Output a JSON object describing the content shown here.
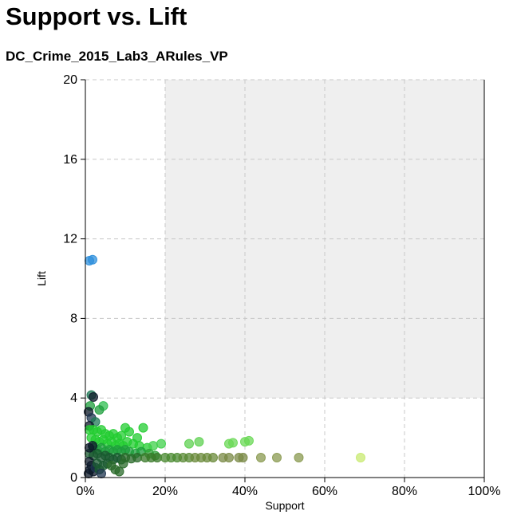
{
  "title": "Support vs. Lift",
  "subtitle": "DC_Crime_2015_Lab3_ARules_VP",
  "colors": {
    "background": "#ffffff",
    "shade_region": "#efefef",
    "grid": "#c8c8c8",
    "axis": "#000000"
  },
  "chart_data": {
    "type": "scatter",
    "xlabel": "Support",
    "ylabel": "Lift",
    "xlim": [
      0,
      1
    ],
    "ylim": [
      0,
      20
    ],
    "x_ticks": [
      "0%",
      "20%",
      "40%",
      "60%",
      "80%",
      "100%"
    ],
    "y_ticks": [
      "0",
      "4",
      "8",
      "12",
      "16",
      "20"
    ],
    "grid": true,
    "shaded_region": {
      "x_min": 0.2,
      "x_max": 1.0,
      "y_min": 4,
      "y_max": 20
    },
    "points": [
      {
        "x": 0.01,
        "y": 10.9,
        "c": "#2d8fdc"
      },
      {
        "x": 0.018,
        "y": 10.95,
        "c": "#2d8fdc"
      },
      {
        "x": 0.015,
        "y": 4.15,
        "c": "#1f7a55"
      },
      {
        "x": 0.02,
        "y": 4.05,
        "c": "#0d1a2a"
      },
      {
        "x": 0.012,
        "y": 3.6,
        "c": "#1e9e3c"
      },
      {
        "x": 0.045,
        "y": 3.6,
        "c": "#2fbf50"
      },
      {
        "x": 0.035,
        "y": 3.4,
        "c": "#1e9e3c"
      },
      {
        "x": 0.008,
        "y": 3.3,
        "c": "#0d1a2a"
      },
      {
        "x": 0.015,
        "y": 3.0,
        "c": "#1f3550"
      },
      {
        "x": 0.025,
        "y": 2.8,
        "c": "#1f7a55"
      },
      {
        "x": 0.01,
        "y": 2.6,
        "c": "#0d1a2a"
      },
      {
        "x": 0.01,
        "y": 2.4,
        "c": "#22cc30"
      },
      {
        "x": 0.02,
        "y": 2.4,
        "c": "#22cc30"
      },
      {
        "x": 0.03,
        "y": 2.3,
        "c": "#22cc30"
      },
      {
        "x": 0.04,
        "y": 2.4,
        "c": "#22cc30"
      },
      {
        "x": 0.05,
        "y": 2.2,
        "c": "#22cc30"
      },
      {
        "x": 0.06,
        "y": 2.1,
        "c": "#22cc30"
      },
      {
        "x": 0.07,
        "y": 2.2,
        "c": "#22cc30"
      },
      {
        "x": 0.08,
        "y": 2.0,
        "c": "#22cc30"
      },
      {
        "x": 0.09,
        "y": 2.1,
        "c": "#22cc30"
      },
      {
        "x": 0.1,
        "y": 2.5,
        "c": "#22cc30"
      },
      {
        "x": 0.11,
        "y": 2.3,
        "c": "#22cc30"
      },
      {
        "x": 0.13,
        "y": 2.0,
        "c": "#22cc30"
      },
      {
        "x": 0.145,
        "y": 2.5,
        "c": "#22cc30"
      },
      {
        "x": 0.015,
        "y": 2.0,
        "c": "#22cc30"
      },
      {
        "x": 0.025,
        "y": 1.9,
        "c": "#22cc30"
      },
      {
        "x": 0.035,
        "y": 1.8,
        "c": "#22cc30"
      },
      {
        "x": 0.045,
        "y": 1.9,
        "c": "#22cc30"
      },
      {
        "x": 0.055,
        "y": 1.7,
        "c": "#22cc30"
      },
      {
        "x": 0.065,
        "y": 1.8,
        "c": "#22cc30"
      },
      {
        "x": 0.075,
        "y": 1.6,
        "c": "#22cc30"
      },
      {
        "x": 0.085,
        "y": 1.7,
        "c": "#22cc30"
      },
      {
        "x": 0.095,
        "y": 1.6,
        "c": "#22cc30"
      },
      {
        "x": 0.105,
        "y": 1.8,
        "c": "#22cc30"
      },
      {
        "x": 0.12,
        "y": 1.7,
        "c": "#22cc30"
      },
      {
        "x": 0.135,
        "y": 1.6,
        "c": "#22cc30"
      },
      {
        "x": 0.155,
        "y": 1.5,
        "c": "#22cc30"
      },
      {
        "x": 0.17,
        "y": 1.6,
        "c": "#3fd04a"
      },
      {
        "x": 0.19,
        "y": 1.7,
        "c": "#3fd04a"
      },
      {
        "x": 0.26,
        "y": 1.7,
        "c": "#5dd050"
      },
      {
        "x": 0.285,
        "y": 1.8,
        "c": "#5dd050"
      },
      {
        "x": 0.36,
        "y": 1.7,
        "c": "#6ad855"
      },
      {
        "x": 0.37,
        "y": 1.75,
        "c": "#6ad855"
      },
      {
        "x": 0.4,
        "y": 1.8,
        "c": "#6ad855"
      },
      {
        "x": 0.41,
        "y": 1.85,
        "c": "#6ad855"
      },
      {
        "x": 0.02,
        "y": 1.5,
        "c": "#1e9e3c"
      },
      {
        "x": 0.03,
        "y": 1.4,
        "c": "#1e9e3c"
      },
      {
        "x": 0.04,
        "y": 1.5,
        "c": "#1e9e3c"
      },
      {
        "x": 0.05,
        "y": 1.3,
        "c": "#1e9e3c"
      },
      {
        "x": 0.06,
        "y": 1.4,
        "c": "#1e9e3c"
      },
      {
        "x": 0.07,
        "y": 1.3,
        "c": "#1e9e3c"
      },
      {
        "x": 0.08,
        "y": 1.4,
        "c": "#1e9e3c"
      },
      {
        "x": 0.09,
        "y": 1.3,
        "c": "#1e9e3c"
      },
      {
        "x": 0.1,
        "y": 1.4,
        "c": "#1e9e3c"
      },
      {
        "x": 0.11,
        "y": 1.3,
        "c": "#1e9e3c"
      },
      {
        "x": 0.125,
        "y": 1.2,
        "c": "#1e9e3c"
      },
      {
        "x": 0.14,
        "y": 1.3,
        "c": "#1e9e3c"
      },
      {
        "x": 0.16,
        "y": 1.2,
        "c": "#2fa03a"
      },
      {
        "x": 0.175,
        "y": 1.1,
        "c": "#2fa03a"
      },
      {
        "x": 0.01,
        "y": 1.2,
        "c": "#1a5a30"
      },
      {
        "x": 0.02,
        "y": 1.1,
        "c": "#1a5a30"
      },
      {
        "x": 0.03,
        "y": 1.2,
        "c": "#1a5a30"
      },
      {
        "x": 0.04,
        "y": 1.0,
        "c": "#1a5a30"
      },
      {
        "x": 0.05,
        "y": 1.1,
        "c": "#1a5a30"
      },
      {
        "x": 0.06,
        "y": 1.0,
        "c": "#1a5a30"
      },
      {
        "x": 0.07,
        "y": 0.9,
        "c": "#1a5a30"
      },
      {
        "x": 0.08,
        "y": 1.0,
        "c": "#1a5a30"
      },
      {
        "x": 0.09,
        "y": 0.9,
        "c": "#1a5a30"
      },
      {
        "x": 0.1,
        "y": 1.0,
        "c": "#2a6a2a"
      },
      {
        "x": 0.115,
        "y": 0.95,
        "c": "#2a6a2a"
      },
      {
        "x": 0.13,
        "y": 1.0,
        "c": "#2a6a2a"
      },
      {
        "x": 0.15,
        "y": 1.0,
        "c": "#3a7a2a"
      },
      {
        "x": 0.165,
        "y": 1.0,
        "c": "#3a7a2a"
      },
      {
        "x": 0.18,
        "y": 1.0,
        "c": "#3a7a2a"
      },
      {
        "x": 0.2,
        "y": 1.0,
        "c": "#4a8a30"
      },
      {
        "x": 0.215,
        "y": 1.0,
        "c": "#4a8a30"
      },
      {
        "x": 0.23,
        "y": 1.0,
        "c": "#4a8a30"
      },
      {
        "x": 0.245,
        "y": 1.0,
        "c": "#5a8a35"
      },
      {
        "x": 0.26,
        "y": 1.0,
        "c": "#5a8a35"
      },
      {
        "x": 0.275,
        "y": 1.0,
        "c": "#6a8a3a"
      },
      {
        "x": 0.29,
        "y": 1.0,
        "c": "#6a8a3a"
      },
      {
        "x": 0.305,
        "y": 1.0,
        "c": "#6a8a3a"
      },
      {
        "x": 0.32,
        "y": 1.0,
        "c": "#6a8a3a"
      },
      {
        "x": 0.345,
        "y": 1.0,
        "c": "#7a8a45"
      },
      {
        "x": 0.36,
        "y": 1.0,
        "c": "#7a8a45"
      },
      {
        "x": 0.385,
        "y": 1.0,
        "c": "#7a8a45"
      },
      {
        "x": 0.395,
        "y": 1.0,
        "c": "#7a8a45"
      },
      {
        "x": 0.44,
        "y": 1.0,
        "c": "#8a9a50"
      },
      {
        "x": 0.48,
        "y": 1.0,
        "c": "#8a9a50"
      },
      {
        "x": 0.535,
        "y": 1.0,
        "c": "#8a9a50"
      },
      {
        "x": 0.69,
        "y": 1.0,
        "c": "#c8ea70"
      },
      {
        "x": 0.01,
        "y": 0.8,
        "c": "#0d1a2a"
      },
      {
        "x": 0.015,
        "y": 0.6,
        "c": "#0d1a2a"
      },
      {
        "x": 0.012,
        "y": 0.4,
        "c": "#0d1a2a"
      },
      {
        "x": 0.008,
        "y": 0.2,
        "c": "#0d1a2a"
      },
      {
        "x": 0.02,
        "y": 0.3,
        "c": "#0d1a2a"
      },
      {
        "x": 0.025,
        "y": 0.5,
        "c": "#1f3550"
      },
      {
        "x": 0.03,
        "y": 0.7,
        "c": "#1a5a30"
      },
      {
        "x": 0.035,
        "y": 0.4,
        "c": "#1a5a30"
      },
      {
        "x": 0.045,
        "y": 0.6,
        "c": "#1a5a30"
      },
      {
        "x": 0.055,
        "y": 0.7,
        "c": "#1a5a30"
      },
      {
        "x": 0.065,
        "y": 0.6,
        "c": "#2a6a2a"
      },
      {
        "x": 0.075,
        "y": 0.4,
        "c": "#2a6a2a"
      },
      {
        "x": 0.085,
        "y": 0.3,
        "c": "#2a6a2a"
      },
      {
        "x": 0.095,
        "y": 0.7,
        "c": "#2a6a2a"
      },
      {
        "x": 0.04,
        "y": 0.2,
        "c": "#1f3550"
      },
      {
        "x": 0.018,
        "y": 1.6,
        "c": "#0d1a2a"
      },
      {
        "x": 0.01,
        "y": 1.5,
        "c": "#0d1a2a"
      }
    ]
  }
}
